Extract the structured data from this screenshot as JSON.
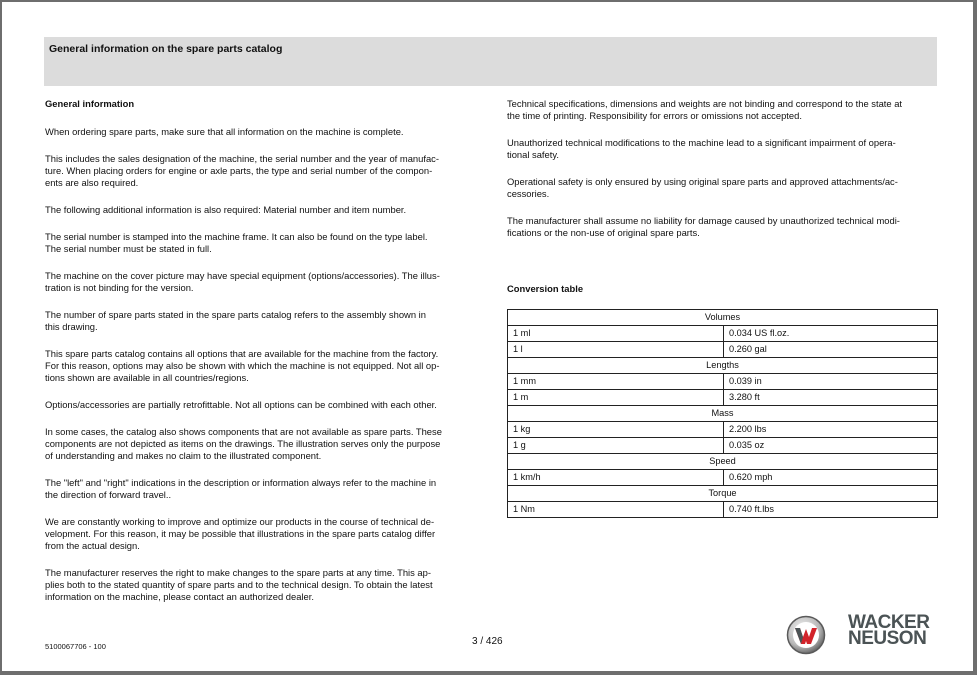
{
  "header": {
    "title": "General information on the spare parts catalog"
  },
  "left": {
    "heading": "General information",
    "paragraphs": [
      [
        "When ordering spare parts, make sure that all information on the machine is complete."
      ],
      [
        "This includes the sales designation of the machine, the serial number and the year of manufac-",
        "ture. When placing orders for engine or axle parts, the type and serial number of the compon-",
        "ents are also required."
      ],
      [
        "The following additional information is also required: Material number and item number."
      ],
      [
        "The serial number is stamped into the machine frame. It can also be found on the type label.",
        "The serial number must be stated in full."
      ],
      [
        "The machine on the cover picture may have special equipment (options/accessories). The illus-",
        "tration is not binding for the version."
      ],
      [
        "The number of spare parts stated in the spare parts catalog refers to the assembly shown in",
        "this drawing."
      ],
      [
        "This spare parts catalog contains all options that are available for the machine from the factory.",
        "For this reason, options may also be shown with which the machine is not equipped. Not all op-",
        "tions shown are available in all countries/regions."
      ],
      [
        "Options/accessories are partially retrofittable. Not all options can be combined with each other."
      ],
      [
        "In some cases, the catalog also shows components that are not available as spare parts. These",
        "components are not depicted as items on the drawings. The illustration serves only the purpose",
        "of understanding and makes no claim to the illustrated component."
      ],
      [
        "The \"left\" and \"right\" indications in the description or information always refer to the machine in",
        "the direction of forward travel.."
      ],
      [
        "We are constantly working to improve and optimize our products in the course of technical de-",
        "velopment. For this reason, it may be possible that illustrations in the spare parts catalog differ",
        "from the actual design."
      ],
      [
        "The manufacturer reserves the right to make changes to the spare parts at any time. This ap-",
        "plies both to the stated quantity of spare parts and to the technical design. To obtain the latest",
        "information on the machine, please contact an authorized dealer."
      ]
    ]
  },
  "right": {
    "paragraphs": [
      [
        "Technical specifications, dimensions and weights are not binding and correspond to the state at",
        "the time of printing. Responsibility for errors or omissions not accepted."
      ],
      [
        "Unauthorized technical modifications to the machine lead to a significant impairment of opera-",
        "tional safety."
      ],
      [
        "Operational safety is only ensured by using original spare parts and approved attachments/ac-",
        "cessories."
      ],
      [
        "The manufacturer shall assume no liability for damage caused by unauthorized technical modi-",
        "fications or the non-use of original spare parts."
      ]
    ],
    "conversion_heading": "Conversion table",
    "conversion_table": [
      {
        "section": "Volumes",
        "rows": [
          [
            "1 ml",
            "0.034 US fl.oz."
          ],
          [
            "1 l",
            "0.260 gal"
          ]
        ]
      },
      {
        "section": "Lengths",
        "rows": [
          [
            "1 mm",
            "0.039 in"
          ],
          [
            "1 m",
            "3.280 ft"
          ]
        ]
      },
      {
        "section": "Mass",
        "rows": [
          [
            "1 kg",
            "2.200 lbs"
          ],
          [
            "1 g",
            "0.035 oz"
          ]
        ]
      },
      {
        "section": "Speed",
        "rows": [
          [
            "1 km/h",
            "0.620 mph"
          ]
        ]
      },
      {
        "section": "Torque",
        "rows": [
          [
            "1 Nm",
            "0.740 ft.lbs"
          ]
        ]
      }
    ]
  },
  "footer": {
    "doc_number": "5100067706 - 100",
    "page": "3 / 426",
    "logo_text": "WACKER NEUSON",
    "logo_colors": {
      "red": "#d2232a",
      "gray": "#4b5355"
    }
  }
}
